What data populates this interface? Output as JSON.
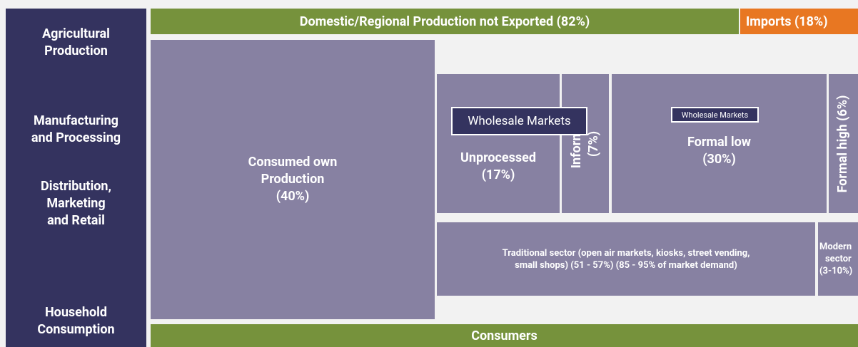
{
  "stages": [
    {
      "lines": [
        "Agricultural",
        "Production"
      ]
    },
    {
      "lines": [
        "Manufacturing",
        "and Processing"
      ]
    },
    {
      "lines": [
        "Distribution,",
        "Marketing",
        "and Retail"
      ]
    },
    {
      "lines": [
        "Household",
        "Consumption"
      ]
    }
  ],
  "top": {
    "domestic": "Domestic/Regional Production not Exported (82%)",
    "imports": "Imports (18%)"
  },
  "consumed_own": {
    "lines": [
      "Consumed own",
      "Production",
      "(40%)"
    ]
  },
  "unprocessed": {
    "lines": [
      "Unprocessed",
      "(17%)"
    ],
    "market": "Wholesale Markets"
  },
  "informal": {
    "lines": [
      "Informal",
      "(7%)"
    ]
  },
  "formal_low": {
    "lines": [
      "Formal low",
      "(30%)"
    ],
    "market": "Wholesale Markets"
  },
  "formal_high": {
    "lines": [
      "Formal high (6%)"
    ]
  },
  "traditional": {
    "lines": [
      "Traditional sector (open air markets, kiosks, street vending,",
      "small shops) (51 - 57%) (85 - 95% of market demand)"
    ]
  },
  "modern": {
    "lines": [
      "Modern",
      "sector",
      "(3-10%)"
    ]
  },
  "consumers": "Consumers"
}
